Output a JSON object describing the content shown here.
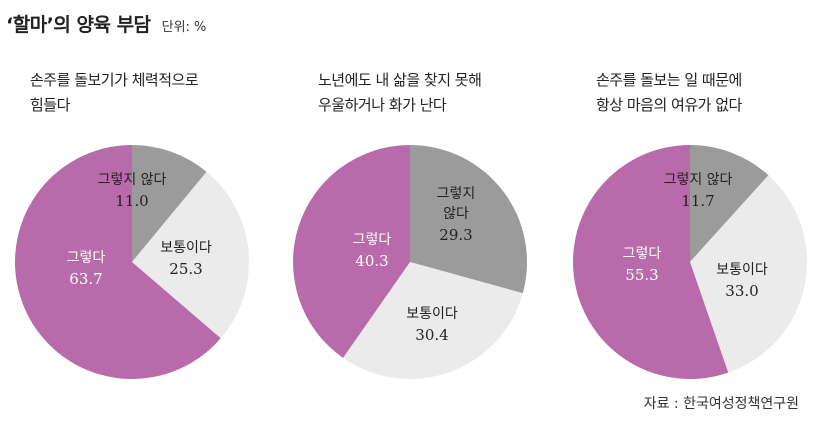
{
  "header": {
    "title": "‘할마’의 양육 부담",
    "unit": "단위: %"
  },
  "colors": {
    "yes": "#b96aab",
    "no": "#9b9b9b",
    "neutral": "#ebebeb"
  },
  "chart_data": [
    {
      "type": "pie",
      "question_lines": [
        "손주를 돌보기가 체력적으로",
        "힘들다"
      ],
      "slices": [
        {
          "label_lines": [
            "그렇다"
          ],
          "value": 63.7,
          "value_text": "63.7",
          "color": "#b96aab",
          "text_color": "#ffffff"
        },
        {
          "label_lines": [
            "그렇지 않다"
          ],
          "value": 11.0,
          "value_text": "11.0",
          "color": "#9b9b9b",
          "text_color": "#222222"
        },
        {
          "label_lines": [
            "보통이다"
          ],
          "value": 25.3,
          "value_text": "25.3",
          "color": "#ebebeb",
          "text_color": "#222222"
        }
      ]
    },
    {
      "type": "pie",
      "question_lines": [
        "노년에도 내 삶을 찾지 못해",
        "우울하거나 화가 난다"
      ],
      "slices": [
        {
          "label_lines": [
            "그렇다"
          ],
          "value": 40.3,
          "value_text": "40.3",
          "color": "#b96aab",
          "text_color": "#ffffff"
        },
        {
          "label_lines": [
            "그렇지",
            "않다"
          ],
          "value": 29.3,
          "value_text": "29.3",
          "color": "#9b9b9b",
          "text_color": "#222222"
        },
        {
          "label_lines": [
            "보통이다"
          ],
          "value": 30.4,
          "value_text": "30.4",
          "color": "#ebebeb",
          "text_color": "#222222"
        }
      ]
    },
    {
      "type": "pie",
      "question_lines": [
        "손주를 돌보는 일 때문에",
        "항상 마음의 여유가 없다"
      ],
      "slices": [
        {
          "label_lines": [
            "그렇다"
          ],
          "value": 55.3,
          "value_text": "55.3",
          "color": "#b96aab",
          "text_color": "#ffffff"
        },
        {
          "label_lines": [
            "그렇지 않다"
          ],
          "value": 11.7,
          "value_text": "11.7",
          "color": "#9b9b9b",
          "text_color": "#222222"
        },
        {
          "label_lines": [
            "보통이다"
          ],
          "value": 33.0,
          "value_text": "33.0",
          "color": "#ebebeb",
          "text_color": "#222222"
        }
      ]
    }
  ],
  "source": "자료 : 한국여성정책연구원"
}
